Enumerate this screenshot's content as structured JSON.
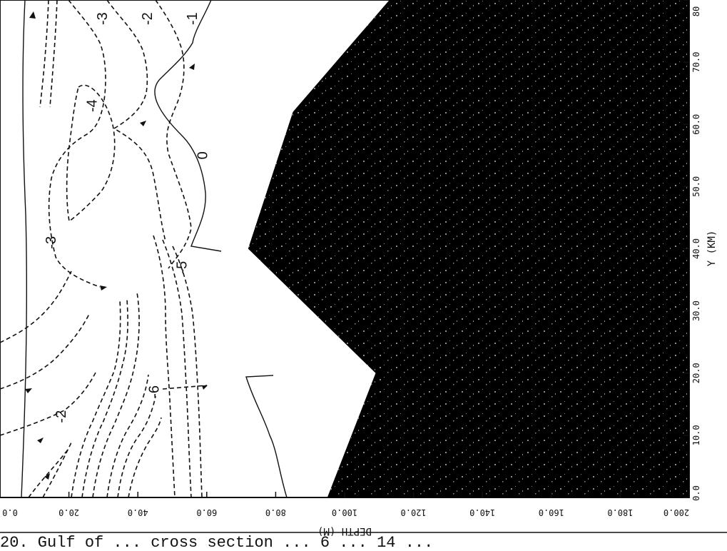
{
  "chart_data": {
    "type": "contour",
    "x_axis": {
      "label": "DEPTH (M)",
      "range": [
        0,
        200
      ],
      "ticks": [
        "0.0",
        "20.0",
        "40.0",
        "60.0",
        "80.0",
        "100.0",
        "120.0",
        "140.0",
        "160.0",
        "180.0",
        "200.0"
      ]
    },
    "y_axis": {
      "label": "Y (KM)",
      "range": [
        0,
        80
      ],
      "ticks": [
        "0.0",
        "10.0",
        "20.0",
        "30.0",
        "40.0",
        "50.0",
        "60.0",
        "70.0",
        "80"
      ]
    },
    "bottom_profile": [
      {
        "y": 0,
        "depth": 95
      },
      {
        "y": 20,
        "depth": 109
      },
      {
        "y": 40,
        "depth": 72
      },
      {
        "y": 62,
        "depth": 85
      },
      {
        "y": 80,
        "depth": 113
      }
    ],
    "contour_labels": [
      {
        "text": "-3",
        "depth": 30,
        "y": 77
      },
      {
        "text": "-2",
        "depth": 43,
        "y": 77
      },
      {
        "text": "-1",
        "depth": 56,
        "y": 77
      },
      {
        "text": "-4",
        "depth": 27,
        "y": 63
      },
      {
        "text": "0",
        "depth": 59,
        "y": 55
      },
      {
        "text": "-3",
        "depth": 15,
        "y": 41
      },
      {
        "text": "-5",
        "depth": 53,
        "y": 37
      },
      {
        "text": "-6",
        "depth": 45,
        "y": 17
      },
      {
        "text": "-2",
        "depth": 18,
        "y": 13
      }
    ],
    "grid": false
  },
  "caption": "20.  Gulf of ... cross section ... 6 ... 14 ..."
}
